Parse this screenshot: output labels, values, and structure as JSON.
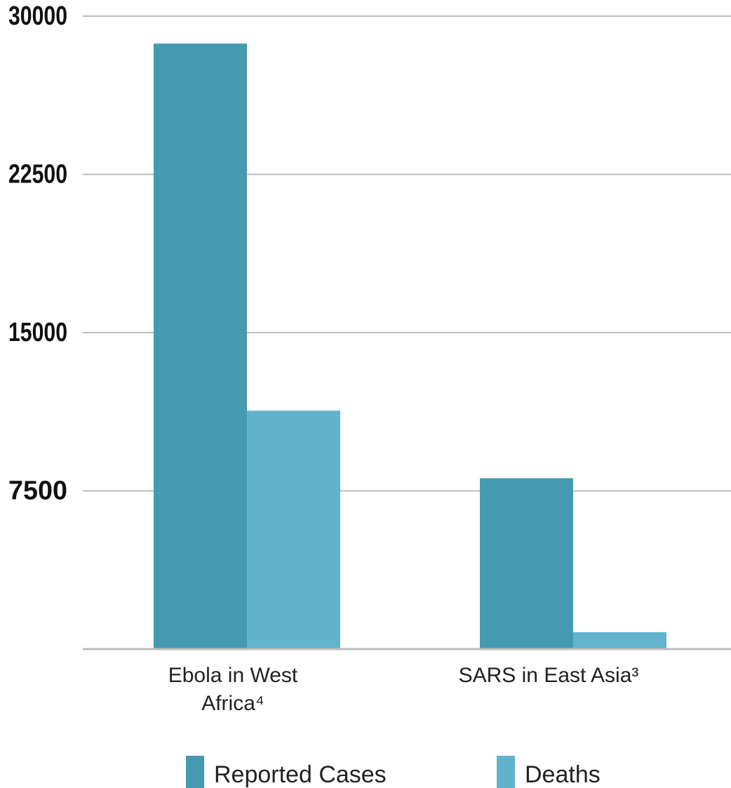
{
  "chart_data": {
    "type": "bar",
    "categories": [
      "Ebola in West Africa⁴",
      "SARS in East Asia³"
    ],
    "category_lines": [
      [
        "Ebola in West",
        "Africa⁴"
      ],
      [
        "SARS in East Asia³"
      ]
    ],
    "series": [
      {
        "name": "Reported Cases",
        "values": [
          28700,
          8100
        ],
        "color": "#4599b0"
      },
      {
        "name": "Deaths",
        "values": [
          11300,
          800
        ],
        "color": "#63b3cc"
      }
    ],
    "y_ticks": [
      7500,
      15000,
      22500,
      30000
    ],
    "ylim": [
      0,
      30000
    ],
    "grid": true,
    "legend": "bottom"
  }
}
